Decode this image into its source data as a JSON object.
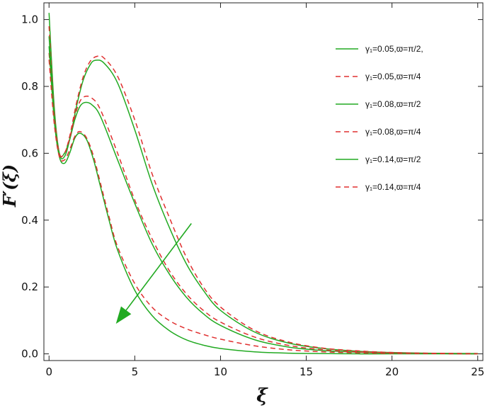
{
  "chart_data": {
    "type": "line",
    "title": "",
    "xlabel": "ξ",
    "ylabel": "F′(ξ)",
    "xlim": [
      -0.3,
      25.3
    ],
    "ylim": [
      -0.02,
      1.05
    ],
    "xticks": [
      0,
      5,
      10,
      15,
      20,
      25
    ],
    "yticks": [
      0.0,
      0.2,
      0.4,
      0.6,
      0.8,
      1.0
    ],
    "xtick_labels": [
      "0",
      "5",
      "10",
      "15",
      "20",
      "25"
    ],
    "ytick_labels": [
      "0.0",
      "0.2",
      "0.4",
      "0.6",
      "0.8",
      "1.0"
    ],
    "grid": false,
    "legend_position": "top-right",
    "annotation": {
      "type": "arrow",
      "color": "#22aa22",
      "from": [
        8.3,
        0.39
      ],
      "to": [
        3.9,
        0.09
      ]
    },
    "series": [
      {
        "name": "γ₁=0.05,ϖ=π/2,",
        "color": "#22aa22",
        "dash": "solid",
        "x": [
          0.0,
          0.3,
          0.6,
          0.9,
          1.2,
          1.6,
          2.0,
          2.4,
          2.7,
          3.2,
          4.0,
          5.0,
          6.0,
          7.0,
          8.0,
          9.0,
          10.0,
          12.0,
          14.0,
          16.0,
          18.0,
          20.0,
          22.0,
          25.0
        ],
        "y": [
          1.02,
          0.74,
          0.6,
          0.59,
          0.64,
          0.74,
          0.82,
          0.865,
          0.878,
          0.87,
          0.81,
          0.67,
          0.51,
          0.38,
          0.27,
          0.19,
          0.13,
          0.065,
          0.032,
          0.016,
          0.008,
          0.004,
          0.002,
          0.001
        ]
      },
      {
        "name": "γ₁=0.05,ϖ=π/4",
        "color": "#e03030",
        "dash": "dashed",
        "x": [
          0.0,
          0.3,
          0.6,
          0.9,
          1.2,
          1.6,
          2.0,
          2.4,
          2.8,
          3.2,
          4.0,
          5.0,
          6.0,
          7.0,
          8.0,
          9.0,
          10.0,
          12.0,
          14.0,
          16.0,
          18.0,
          20.0,
          22.0,
          25.0
        ],
        "y": [
          0.98,
          0.73,
          0.6,
          0.6,
          0.65,
          0.75,
          0.83,
          0.875,
          0.89,
          0.885,
          0.83,
          0.7,
          0.54,
          0.41,
          0.29,
          0.2,
          0.14,
          0.07,
          0.035,
          0.017,
          0.009,
          0.004,
          0.002,
          0.001
        ]
      },
      {
        "name": "γ₁=0.08,ϖ=π/2",
        "color": "#22aa22",
        "dash": "solid",
        "x": [
          0.0,
          0.3,
          0.6,
          0.9,
          1.2,
          1.5,
          1.8,
          2.1,
          2.5,
          3.0,
          4.0,
          5.0,
          6.0,
          7.0,
          8.0,
          9.0,
          10.0,
          12.0,
          14.0,
          16.0,
          18.0,
          20.0,
          22.0,
          25.0
        ],
        "y": [
          0.95,
          0.72,
          0.6,
          0.6,
          0.64,
          0.7,
          0.74,
          0.752,
          0.745,
          0.71,
          0.58,
          0.45,
          0.33,
          0.24,
          0.17,
          0.12,
          0.085,
          0.042,
          0.02,
          0.01,
          0.005,
          0.002,
          0.001,
          0.0
        ]
      },
      {
        "name": "γ₁=0.08,ϖ=π/4",
        "color": "#e03030",
        "dash": "dashed",
        "x": [
          0.0,
          0.3,
          0.6,
          0.9,
          1.2,
          1.5,
          1.8,
          2.1,
          2.5,
          3.0,
          4.0,
          5.0,
          6.0,
          7.0,
          8.0,
          9.0,
          10.0,
          12.0,
          14.0,
          16.0,
          18.0,
          20.0,
          22.0,
          25.0
        ],
        "y": [
          0.9,
          0.71,
          0.6,
          0.6,
          0.645,
          0.71,
          0.755,
          0.77,
          0.765,
          0.73,
          0.6,
          0.46,
          0.345,
          0.25,
          0.18,
          0.13,
          0.095,
          0.05,
          0.025,
          0.012,
          0.006,
          0.003,
          0.001,
          0.0
        ]
      },
      {
        "name": "γ₁=0.14,ϖ=π/2",
        "color": "#22aa22",
        "dash": "solid",
        "x": [
          0.0,
          0.3,
          0.6,
          0.9,
          1.2,
          1.5,
          1.8,
          2.2,
          2.6,
          3.0,
          3.5,
          4.0,
          5.0,
          6.0,
          7.0,
          8.0,
          9.0,
          10.0,
          12.0,
          14.0,
          16.0,
          18.0,
          20.0,
          25.0
        ],
        "y": [
          0.92,
          0.7,
          0.59,
          0.57,
          0.6,
          0.645,
          0.66,
          0.64,
          0.58,
          0.5,
          0.4,
          0.31,
          0.19,
          0.115,
          0.07,
          0.042,
          0.026,
          0.016,
          0.006,
          0.002,
          0.001,
          0.0,
          0.0,
          0.0
        ]
      },
      {
        "name": "γ₁=0.14,ϖ=π/4",
        "color": "#e03030",
        "dash": "dashed",
        "x": [
          0.0,
          0.3,
          0.6,
          0.9,
          1.2,
          1.5,
          1.8,
          2.2,
          2.6,
          3.0,
          3.5,
          4.0,
          5.0,
          6.0,
          7.0,
          8.0,
          9.0,
          10.0,
          12.0,
          14.0,
          16.0,
          18.0,
          20.0,
          25.0
        ],
        "y": [
          0.88,
          0.69,
          0.59,
          0.58,
          0.61,
          0.65,
          0.665,
          0.645,
          0.59,
          0.51,
          0.41,
          0.32,
          0.21,
          0.14,
          0.1,
          0.075,
          0.058,
          0.044,
          0.024,
          0.012,
          0.006,
          0.003,
          0.0015,
          0.0
        ]
      }
    ]
  }
}
